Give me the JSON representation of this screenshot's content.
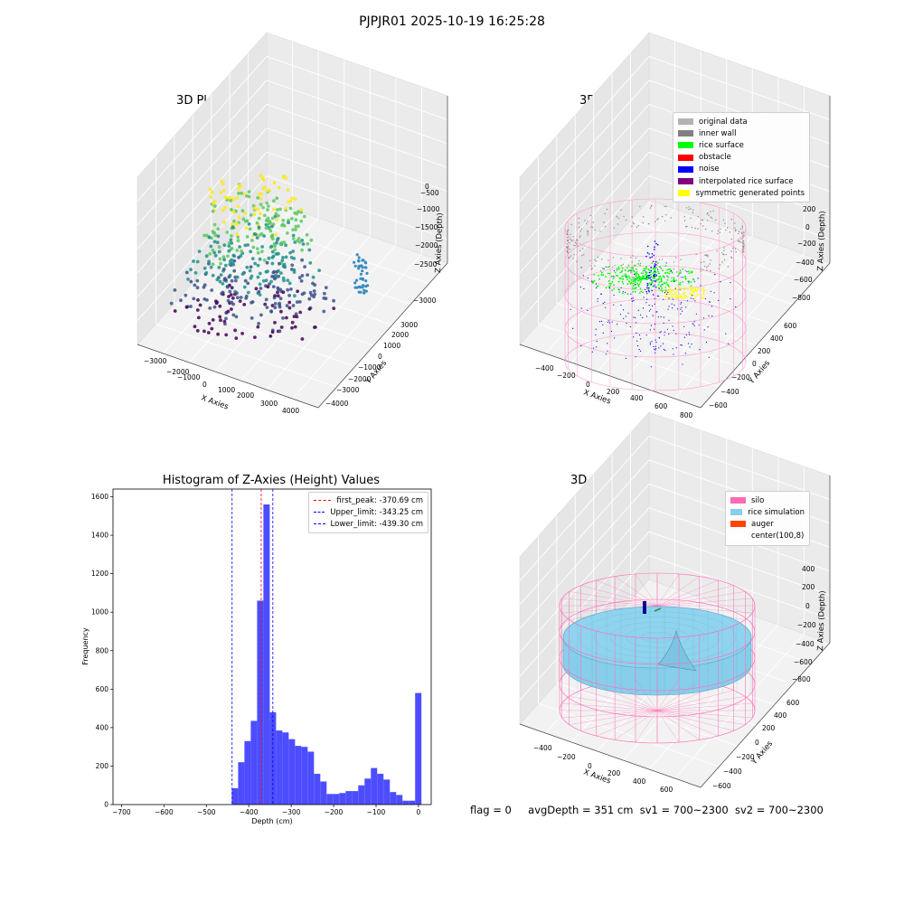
{
  "figure": {
    "suptitle": "PJPJR01 2025-10-19 16:25:28"
  },
  "footer": {
    "flag": "flag = 0",
    "avg_depth": "avgDepth = 351 cm",
    "sv1": "sv1 = 700~2300",
    "sv2": "sv2 = 700~2300"
  },
  "chart_data": [
    {
      "type": "scatter3d",
      "title": "3D Plot of Silo Interior(row data)",
      "xlabel": "X Axies",
      "ylabel": "Y Axies",
      "zlabel": "Z Axies (Depth)",
      "x_ticks": [
        "−3000",
        "−2000",
        "−1000",
        "0",
        "1000",
        "2000",
        "3000",
        "4000"
      ],
      "y_ticks": [
        "−4000",
        "−3000",
        "−2000",
        "−1000",
        "0",
        "1000",
        "2000",
        "3000"
      ],
      "z_ticks": [
        "−3000",
        "−2500",
        "−2000",
        "−1500",
        "−1000",
        "−500",
        "0"
      ],
      "colormap": "viridis",
      "grid": true
    },
    {
      "type": "scatter3d",
      "title": "3D classify of Silo Interior",
      "xlabel": "X Axies",
      "ylabel": "Y Axies",
      "zlabel": "Z Axies (Depth)",
      "x_ticks": [
        "−400",
        "−200",
        "0",
        "200",
        "400",
        "600",
        "800"
      ],
      "y_ticks": [
        "−600",
        "−400",
        "−200",
        "0",
        "200",
        "400",
        "600"
      ],
      "z_ticks": [
        "−800",
        "−600",
        "−400",
        "−200",
        "0",
        "200"
      ],
      "legend_position": "upper-right",
      "legend": [
        {
          "name": "original data",
          "color": "#b3b3b3"
        },
        {
          "name": "inner wall",
          "color": "#808080"
        },
        {
          "name": "rice surface",
          "color": "#00ff00"
        },
        {
          "name": "obstacle",
          "color": "#ff0000"
        },
        {
          "name": "noise",
          "color": "#0000ff"
        },
        {
          "name": "interpolated rice surface",
          "color": "#800080"
        },
        {
          "name": "symmetric generated points",
          "color": "#ffff00"
        }
      ],
      "grid": true
    },
    {
      "type": "bar",
      "title": "Histogram of Z-Axies (Height) Values",
      "xlabel": "Depth (cm)",
      "ylabel": "Frequency",
      "xlim": [
        -720,
        30
      ],
      "ylim": [
        0,
        1640
      ],
      "x_ticks": [
        -700,
        -600,
        -500,
        -400,
        -300,
        -200,
        -100,
        0
      ],
      "x_tick_labels": [
        "−700",
        "−600",
        "−500",
        "−400",
        "−300",
        "−200",
        "−100",
        "0"
      ],
      "y_ticks": [
        0,
        200,
        400,
        600,
        800,
        1000,
        1200,
        1400,
        1600
      ],
      "bar_color": "#4d4dff",
      "bin_width": 14.9,
      "bin_starts": [
        -440,
        -425.1,
        -410.2,
        -395.3,
        -380.4,
        -365.5,
        -350.6,
        -335.7,
        -320.8,
        -305.9,
        -291,
        -276.1,
        -261.2,
        -246.3,
        -231.4,
        -216.5,
        -201.6,
        -186.7,
        -171.8,
        -156.9,
        -142,
        -127.1,
        -112.2,
        -97.3,
        -82.4,
        -67.5,
        -52.6,
        -37.7,
        -22.8,
        -7.9
      ],
      "values": [
        85,
        220,
        330,
        435,
        1060,
        1560,
        480,
        385,
        375,
        340,
        305,
        300,
        275,
        160,
        120,
        55,
        55,
        60,
        70,
        70,
        100,
        135,
        190,
        160,
        130,
        65,
        50,
        20,
        20,
        580
      ],
      "vlines": [
        {
          "name": "first_peak: -370.69 cm",
          "x": -370.69,
          "color": "#ff0000"
        },
        {
          "name": "Upper_limit: -343.25 cm",
          "x": -343.25,
          "color": "#0000ff"
        },
        {
          "name": "Lower_limit: -439.30 cm",
          "x": -439.3,
          "color": "#0000ff"
        }
      ],
      "legend_position": "upper-right"
    },
    {
      "type": "surface3d",
      "title": "3D simulation of Silo Interior",
      "xlabel": "X Axies",
      "ylabel": "Y Axies",
      "zlabel": "Z Axies (Depth)",
      "x_ticks": [
        "−400",
        "−200",
        "0",
        "200",
        "400",
        "600"
      ],
      "y_ticks": [
        "−600",
        "−400",
        "−200",
        "0",
        "200",
        "400",
        "600"
      ],
      "z_ticks": [
        "−800",
        "−600",
        "−400",
        "−200",
        "0",
        "200",
        "400"
      ],
      "legend_position": "upper-right",
      "legend": [
        {
          "name": "silo",
          "color": "#ff69b4"
        },
        {
          "name": "rice simulation",
          "color": "#87ceeb"
        },
        {
          "name": "auger",
          "color": "#ff4500"
        },
        {
          "name": "center(100,8)",
          "color": "#ffffff"
        }
      ],
      "grid": true
    }
  ]
}
